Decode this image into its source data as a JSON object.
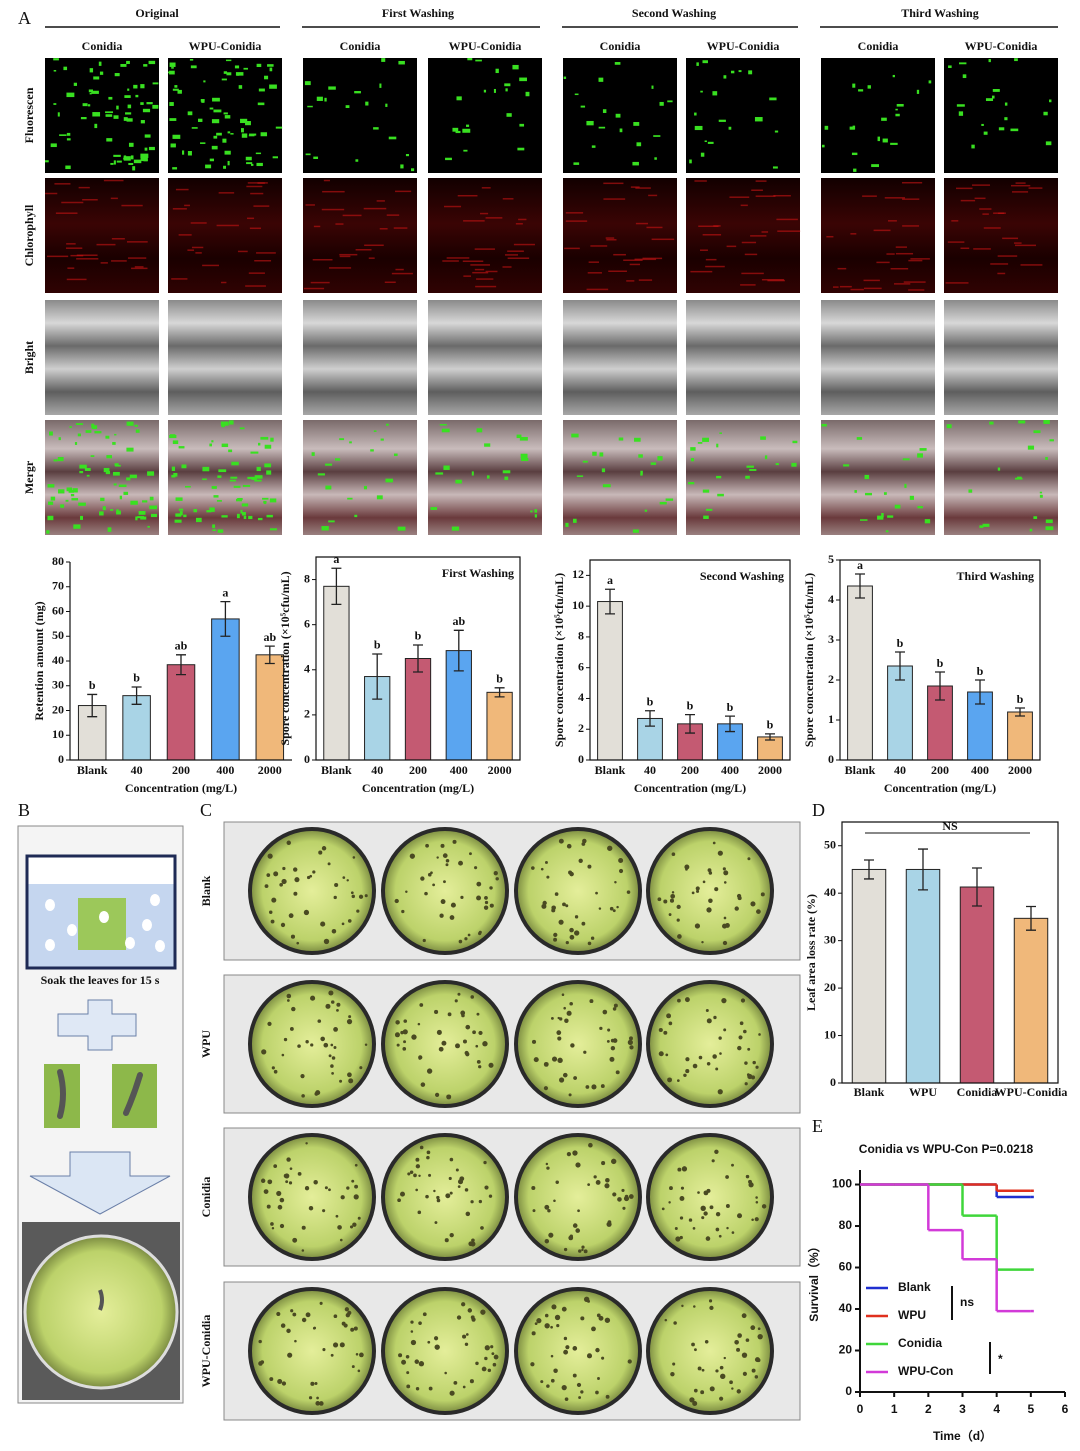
{
  "panel_labels": [
    "A",
    "B",
    "C",
    "D",
    "E"
  ],
  "panel_a": {
    "groups": [
      {
        "title": "Original",
        "columns": [
          "Conidia",
          "WPU-Conidia"
        ]
      },
      {
        "title": "First Washing",
        "columns": [
          "Conidia",
          "WPU-Conidia"
        ]
      },
      {
        "title": "Second Washing",
        "columns": [
          "Conidia",
          "WPU-Conidia"
        ]
      },
      {
        "title": "Third Washing",
        "columns": [
          "Conidia",
          "WPU-Conidia"
        ]
      }
    ],
    "rows": [
      "Fluorescen",
      "Chlorophyll",
      "Bright",
      "Mergr"
    ]
  },
  "panel_b": {
    "caption": "Soak the leaves for 15 s"
  },
  "panel_c": {
    "rows": [
      "Blank",
      "WPU",
      "Conidia",
      "WPU-Conidia"
    ]
  },
  "chart_data": [
    {
      "type": "bar",
      "categories": [
        "Blank",
        "40",
        "200",
        "400",
        "2000"
      ],
      "values": [
        22,
        26,
        38.5,
        57,
        42.5
      ],
      "errors": [
        4.5,
        3.5,
        4,
        7,
        3.5
      ],
      "letters": [
        "b",
        "b",
        "ab",
        "a",
        "ab"
      ],
      "colors": [
        "#e2dfd8",
        "#a9d4e6",
        "#c45a72",
        "#5aa5f0",
        "#f0b87a"
      ],
      "ylim": [
        0,
        80
      ],
      "yticks": [
        0,
        10,
        20,
        30,
        40,
        50,
        60,
        70,
        80
      ],
      "ylabel": "Retention amount (mg)",
      "xlabel": "Concentration (mg/L)"
    },
    {
      "type": "bar",
      "title": "First Washing",
      "categories": [
        "Blank",
        "40",
        "200",
        "400",
        "2000"
      ],
      "values": [
        7.7,
        3.7,
        4.5,
        4.85,
        3.0
      ],
      "errors": [
        0.8,
        1.0,
        0.6,
        0.9,
        0.2
      ],
      "letters": [
        "a",
        "b",
        "b",
        "ab",
        "b"
      ],
      "colors": [
        "#e2dfd8",
        "#a9d4e6",
        "#c45a72",
        "#5aa5f0",
        "#f0b87a"
      ],
      "ylim": [
        0,
        9
      ],
      "yticks": [
        0,
        2,
        4,
        6,
        8
      ],
      "ylabel": "Spore concentration (×10⁵cfu/mL)",
      "xlabel": "Concentration (mg/L)"
    },
    {
      "type": "bar",
      "title": "Second Washing",
      "categories": [
        "Blank",
        "40",
        "200",
        "400",
        "2000"
      ],
      "values": [
        10.3,
        2.7,
        2.35,
        2.35,
        1.5
      ],
      "errors": [
        0.8,
        0.5,
        0.6,
        0.5,
        0.2
      ],
      "letters": [
        "a",
        "b",
        "b",
        "b",
        "b"
      ],
      "colors": [
        "#e2dfd8",
        "#a9d4e6",
        "#c45a72",
        "#5aa5f0",
        "#f0b87a"
      ],
      "ylim": [
        0,
        13
      ],
      "yticks": [
        0,
        2,
        4,
        6,
        8,
        10,
        12
      ],
      "ylabel": "Spore concentration (×10⁵cfu/mL)",
      "xlabel": "Concentration (mg/L)"
    },
    {
      "type": "bar",
      "title": "Third Washing",
      "categories": [
        "Blank",
        "40",
        "200",
        "400",
        "2000"
      ],
      "values": [
        4.35,
        2.35,
        1.85,
        1.7,
        1.2
      ],
      "errors": [
        0.3,
        0.35,
        0.35,
        0.3,
        0.1
      ],
      "letters": [
        "a",
        "b",
        "b",
        "b",
        "b"
      ],
      "colors": [
        "#e2dfd8",
        "#a9d4e6",
        "#c45a72",
        "#5aa5f0",
        "#f0b87a"
      ],
      "ylim": [
        0,
        5
      ],
      "yticks": [
        0,
        1,
        2,
        3,
        4,
        5
      ],
      "ylabel": "Spore concentration (×10⁵cfu/mL)",
      "xlabel": "Concentration (mg/L)"
    },
    {
      "type": "bar",
      "categories": [
        "Blank",
        "WPU",
        "Conidia",
        "WPU-Conidia"
      ],
      "values": [
        45,
        45,
        41.3,
        34.7
      ],
      "errors": [
        2,
        4.3,
        4,
        2.5
      ],
      "colors": [
        "#e2dfd8",
        "#a9d4e6",
        "#c45a72",
        "#f0b87a"
      ],
      "ylim": [
        0,
        55
      ],
      "yticks": [
        0,
        10,
        20,
        30,
        40,
        50
      ],
      "ylabel": "Leaf area loss rate (%)",
      "annotation": "NS"
    },
    {
      "type": "line",
      "title": "Conidia vs WPU-Con P=0.0218",
      "x": [
        0,
        1,
        2,
        3,
        4,
        5
      ],
      "series": [
        {
          "name": "Blank",
          "color": "#1f2fd0",
          "values": [
            100,
            100,
            100,
            100,
            94,
            94
          ]
        },
        {
          "name": "WPU",
          "color": "#e0301e",
          "values": [
            100,
            100,
            100,
            100,
            97,
            97
          ]
        },
        {
          "name": "Conidia",
          "color": "#3fd63a",
          "values": [
            100,
            100,
            100,
            85,
            59,
            59
          ]
        },
        {
          "name": "WPU-Con",
          "color": "#d23ad8",
          "values": [
            100,
            100,
            78,
            64,
            39,
            39
          ]
        }
      ],
      "xlim": [
        0,
        6
      ],
      "xticks": [
        0,
        1,
        2,
        3,
        4,
        5,
        6
      ],
      "ylim": [
        0,
        107
      ],
      "yticks": [
        0,
        20,
        40,
        60,
        80,
        100
      ],
      "xlabel": "Time（d）",
      "ylabel": "Survival（%）",
      "annotations": [
        "ns",
        "*"
      ]
    }
  ]
}
